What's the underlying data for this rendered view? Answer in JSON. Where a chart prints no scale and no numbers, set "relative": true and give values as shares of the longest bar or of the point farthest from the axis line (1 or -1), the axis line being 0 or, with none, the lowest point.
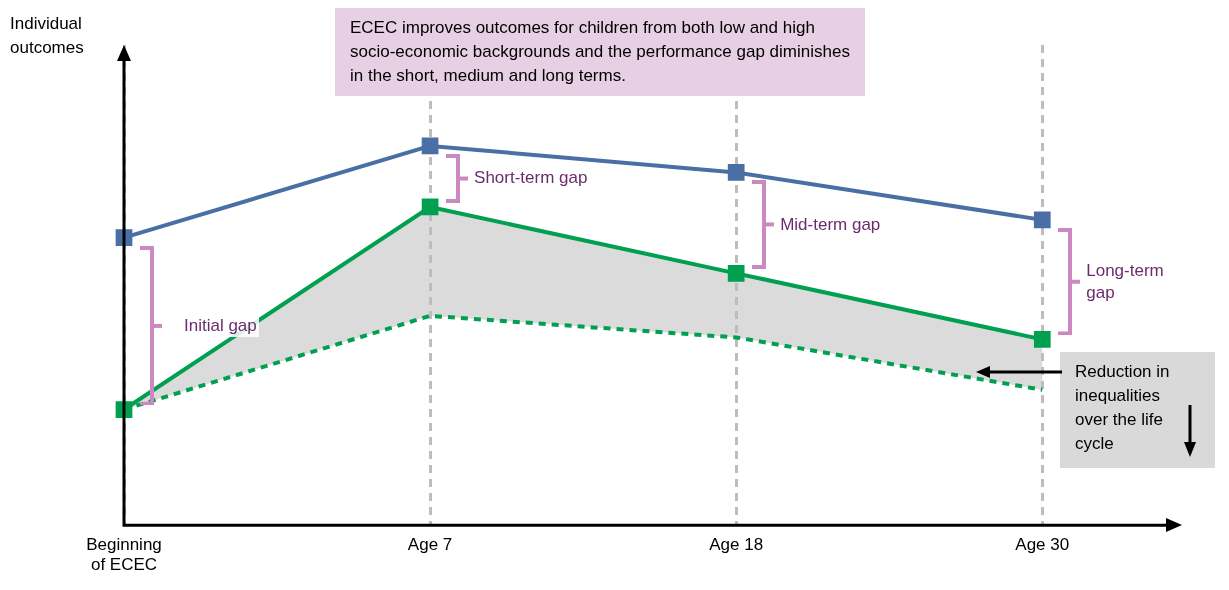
{
  "chart_data": {
    "type": "line",
    "relative": true,
    "categories": [
      "Beginning of ECEC",
      "Age 7",
      "Age 18",
      "Age 30"
    ],
    "grid": "x",
    "marker": "square",
    "legend": false,
    "series": [
      {
        "color": "#4a6fa5",
        "values": [
          0.758,
          1,
          0.93,
          0.805
        ]
      },
      {
        "color": "#00a050",
        "values": [
          0.305,
          0.839,
          0.664,
          0.49
        ],
        "lower": [
          0.305,
          0.552,
          0.495,
          0.357
        ],
        "upper": [
          0.305,
          0.839,
          0.664,
          0.49
        ]
      },
      {
        "color": "#00a050",
        "values": [
          0.305,
          0.552,
          0.495,
          0.357
        ],
        "line_style": "dashed",
        "marker": "none"
      }
    ],
    "annotations": [
      "Individual outcomes",
      "ECEC improves outcomes for children from both low and high socio-economic backgrounds and the performance gap diminishes in the short, medium and long terms.",
      "Reduction in inequalities over the life cycle",
      "Initial gap",
      "Short-term gap",
      "Mid-term gap",
      "Long-term gap"
    ]
  }
}
